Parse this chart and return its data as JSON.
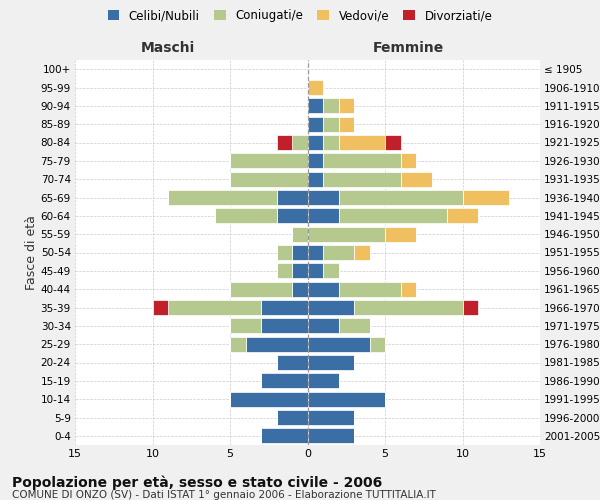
{
  "age_groups": [
    "0-4",
    "5-9",
    "10-14",
    "15-19",
    "20-24",
    "25-29",
    "30-34",
    "35-39",
    "40-44",
    "45-49",
    "50-54",
    "55-59",
    "60-64",
    "65-69",
    "70-74",
    "75-79",
    "80-84",
    "85-89",
    "90-94",
    "95-99",
    "100+"
  ],
  "birth_years": [
    "2001-2005",
    "1996-2000",
    "1991-1995",
    "1986-1990",
    "1981-1985",
    "1976-1980",
    "1971-1975",
    "1966-1970",
    "1961-1965",
    "1956-1960",
    "1951-1955",
    "1946-1950",
    "1941-1945",
    "1936-1940",
    "1931-1935",
    "1926-1930",
    "1921-1925",
    "1916-1920",
    "1911-1915",
    "1906-1910",
    "≤ 1905"
  ],
  "colors": {
    "celibi": "#3a6ea5",
    "coniugati": "#b5c98e",
    "vedovi": "#f0c060",
    "divorziati": "#c0202a"
  },
  "maschi": {
    "celibi": [
      3,
      2,
      5,
      3,
      2,
      4,
      3,
      3,
      1,
      1,
      1,
      0,
      2,
      2,
      0,
      0,
      0,
      0,
      0,
      0,
      0
    ],
    "coniugati": [
      0,
      0,
      0,
      0,
      0,
      1,
      2,
      6,
      4,
      1,
      1,
      1,
      4,
      7,
      5,
      5,
      1,
      0,
      0,
      0,
      0
    ],
    "vedovi": [
      0,
      0,
      0,
      0,
      0,
      0,
      0,
      0,
      0,
      0,
      0,
      0,
      0,
      0,
      0,
      0,
      0,
      0,
      0,
      0,
      0
    ],
    "divorziati": [
      0,
      0,
      0,
      0,
      0,
      0,
      0,
      1,
      0,
      0,
      0,
      0,
      0,
      0,
      0,
      0,
      1,
      0,
      0,
      0,
      0
    ]
  },
  "femmine": {
    "celibi": [
      3,
      3,
      5,
      2,
      3,
      4,
      2,
      3,
      2,
      1,
      1,
      0,
      2,
      2,
      1,
      1,
      1,
      1,
      1,
      0,
      0
    ],
    "coniugati": [
      0,
      0,
      0,
      0,
      0,
      1,
      2,
      7,
      4,
      1,
      2,
      5,
      7,
      8,
      5,
      5,
      1,
      1,
      1,
      0,
      0
    ],
    "vedovi": [
      0,
      0,
      0,
      0,
      0,
      0,
      0,
      0,
      1,
      0,
      1,
      2,
      2,
      3,
      2,
      1,
      3,
      1,
      1,
      1,
      0
    ],
    "divorziati": [
      0,
      0,
      0,
      0,
      0,
      0,
      0,
      1,
      0,
      0,
      0,
      0,
      0,
      0,
      0,
      0,
      1,
      0,
      0,
      0,
      0
    ]
  },
  "title": "Popolazione per età, sesso e stato civile - 2006",
  "subtitle": "COMUNE DI ONZO (SV) - Dati ISTAT 1° gennaio 2006 - Elaborazione TUTTITALIA.IT",
  "xlabel_left": "Maschi",
  "xlabel_right": "Femmine",
  "ylabel_left": "Fasce di età",
  "xlim": 15,
  "xticks": [
    -15,
    -10,
    -5,
    0,
    5,
    10,
    15
  ],
  "background_color": "#f0f0f0",
  "plot_bg": "#ffffff",
  "legend_labels": [
    "Celibi/Nubili",
    "Coniugati/e",
    "Vedovi/e",
    "Divorziati/e"
  ]
}
